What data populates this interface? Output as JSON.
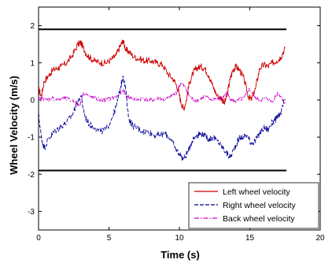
{
  "chart_data": {
    "type": "line",
    "title": "",
    "xlabel": "Time (s)",
    "ylabel": "Wheel Velocity (m/s)",
    "xlim": [
      0,
      20
    ],
    "ylim": [
      -3.5,
      2.5
    ],
    "xticks": [
      "0",
      "5",
      "10",
      "15",
      "20"
    ],
    "yticks": [
      "-3",
      "-2",
      "-1",
      "0",
      "1",
      "2"
    ],
    "grid": false,
    "legend_position": "bottom-right",
    "limit_lines": [
      {
        "y": 1.9,
        "x_start": 0,
        "x_end": 17.6,
        "color": "#000000"
      },
      {
        "y": -1.9,
        "x_start": 0,
        "x_end": 17.6,
        "color": "#000000"
      }
    ],
    "series": [
      {
        "name": "Left wheel velocity",
        "color": "#cc0000",
        "style": "solid",
        "x": [
          0.0,
          0.2,
          0.4,
          0.7,
          1.0,
          1.3,
          1.6,
          2.0,
          2.4,
          2.8,
          3.0,
          3.3,
          3.6,
          4.0,
          4.4,
          4.8,
          5.2,
          5.5,
          5.8,
          6.0,
          6.2,
          6.4,
          6.8,
          7.2,
          7.6,
          8.0,
          8.4,
          8.8,
          9.2,
          9.6,
          9.9,
          10.1,
          10.3,
          10.5,
          10.7,
          11.0,
          11.2,
          11.5,
          11.8,
          12.1,
          12.4,
          12.7,
          13.0,
          13.2,
          13.4,
          13.6,
          13.8,
          14.0,
          14.3,
          14.6,
          14.9,
          15.1,
          15.4,
          15.7,
          16.0,
          16.3,
          16.6,
          16.9,
          17.2,
          17.5
        ],
        "values": [
          0.3,
          0.1,
          0.5,
          0.65,
          0.8,
          0.85,
          0.9,
          1.0,
          1.2,
          1.5,
          1.55,
          1.3,
          1.15,
          1.05,
          1.0,
          1.0,
          1.1,
          1.2,
          1.45,
          1.6,
          1.35,
          1.3,
          1.15,
          1.1,
          1.05,
          1.05,
          1.0,
          0.95,
          0.7,
          0.55,
          0.3,
          -0.05,
          -0.25,
          0.0,
          0.45,
          0.75,
          0.85,
          0.9,
          0.85,
          0.65,
          0.35,
          0.1,
          0.05,
          -0.1,
          0.15,
          0.55,
          0.8,
          0.9,
          0.8,
          0.55,
          0.1,
          0.0,
          0.3,
          0.85,
          0.95,
          0.9,
          1.0,
          1.05,
          1.15,
          1.4
        ]
      },
      {
        "name": "Right wheel velocity",
        "color": "#000099",
        "style": "dashed",
        "x": [
          0.0,
          0.2,
          0.4,
          0.7,
          1.0,
          1.3,
          1.6,
          2.0,
          2.4,
          2.7,
          3.0,
          3.3,
          3.6,
          4.0,
          4.4,
          4.8,
          5.2,
          5.5,
          5.8,
          6.0,
          6.2,
          6.4,
          6.7,
          7.0,
          7.4,
          7.8,
          8.2,
          8.6,
          9.0,
          9.4,
          9.7,
          10.0,
          10.3,
          10.6,
          10.9,
          11.2,
          11.5,
          11.8,
          12.1,
          12.4,
          12.7,
          13.0,
          13.3,
          13.6,
          13.9,
          14.2,
          14.5,
          14.8,
          15.1,
          15.4,
          15.7,
          16.0,
          16.3,
          16.6,
          16.9,
          17.2,
          17.5
        ],
        "values": [
          -0.4,
          -1.0,
          -1.3,
          -1.05,
          -0.9,
          -0.8,
          -0.7,
          -0.6,
          -0.4,
          -0.1,
          0.1,
          -0.45,
          -0.65,
          -0.75,
          -0.85,
          -0.8,
          -0.5,
          -0.2,
          0.3,
          0.65,
          0.25,
          -0.5,
          -0.7,
          -0.75,
          -0.85,
          -0.85,
          -0.95,
          -0.95,
          -0.9,
          -1.05,
          -1.3,
          -1.45,
          -1.6,
          -1.4,
          -1.1,
          -0.95,
          -0.9,
          -0.95,
          -1.05,
          -1.0,
          -1.1,
          -1.25,
          -1.4,
          -1.55,
          -1.3,
          -1.05,
          -1.0,
          -0.95,
          -1.15,
          -1.1,
          -0.9,
          -0.75,
          -0.8,
          -0.6,
          -0.5,
          -0.35,
          0.0
        ]
      },
      {
        "name": "Back wheel velocity",
        "color": "#cc00cc",
        "style": "dashdot",
        "x": [
          0.0,
          0.3,
          0.6,
          1.0,
          1.4,
          1.8,
          2.2,
          2.6,
          2.9,
          3.2,
          3.6,
          4.0,
          4.4,
          4.8,
          5.2,
          5.6,
          6.0,
          6.3,
          6.6,
          7.0,
          7.4,
          7.8,
          8.2,
          8.6,
          9.0,
          9.4,
          9.8,
          10.1,
          10.4,
          10.7,
          11.0,
          11.4,
          11.8,
          12.2,
          12.6,
          13.0,
          13.3,
          13.6,
          13.9,
          14.2,
          14.6,
          15.0,
          15.4,
          15.8,
          16.2,
          16.6,
          17.0,
          17.3,
          17.5
        ],
        "values": [
          0.0,
          0.05,
          0.0,
          0.05,
          0.0,
          0.05,
          0.0,
          -0.05,
          -0.15,
          0.2,
          0.1,
          0.05,
          0.0,
          0.0,
          0.05,
          0.1,
          0.25,
          0.1,
          0.05,
          0.0,
          0.05,
          0.0,
          0.0,
          0.05,
          0.0,
          0.1,
          0.2,
          0.45,
          0.35,
          0.1,
          0.0,
          0.0,
          0.1,
          0.0,
          0.05,
          0.0,
          0.2,
          0.05,
          -0.05,
          0.0,
          0.05,
          0.3,
          0.05,
          0.0,
          0.05,
          -0.05,
          0.2,
          0.05,
          -0.1
        ]
      }
    ]
  }
}
